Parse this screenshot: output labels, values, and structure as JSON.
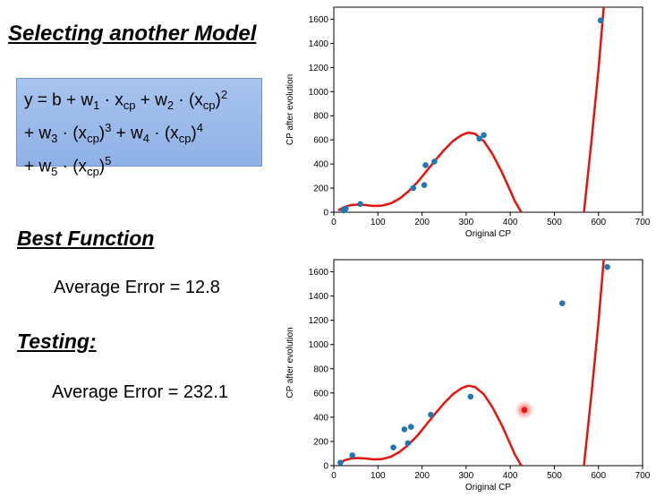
{
  "slide": {
    "title": "Selecting another Model",
    "formula": {
      "line1": [
        "y = b + w",
        "1",
        " · x",
        "cp",
        " + w",
        "2",
        " · (x",
        "cp",
        ")",
        "2"
      ],
      "line2": [
        "+ w",
        "3",
        " · (x",
        "cp",
        ")",
        "3",
        " + w",
        "4",
        " · (x",
        "cp",
        ")",
        "4"
      ],
      "line3": [
        "+ w",
        "5",
        " · (x",
        "cp",
        ")",
        "5"
      ]
    },
    "best_function_label": "Best Function",
    "train_error": "Average Error = 12.8",
    "testing_label": "Testing:",
    "test_error": "Average Error = 232.1"
  },
  "chart_data": [
    {
      "type": "scatter",
      "title": "",
      "xlabel": "Original CP",
      "ylabel": "CP after evolution",
      "xlim": [
        0,
        700
      ],
      "ylim": [
        0,
        1700
      ],
      "xticks": [
        0,
        100,
        200,
        300,
        400,
        500,
        600,
        700
      ],
      "yticks": [
        0,
        200,
        400,
        600,
        800,
        1000,
        1200,
        1400,
        1600
      ],
      "points": [
        [
          22,
          15
        ],
        [
          27,
          30
        ],
        [
          60,
          68
        ],
        [
          180,
          200
        ],
        [
          205,
          225
        ],
        [
          208,
          390
        ],
        [
          228,
          420
        ],
        [
          330,
          610
        ],
        [
          340,
          640
        ],
        [
          605,
          1590
        ]
      ],
      "highlight": [],
      "point_color": "#1f77b4",
      "curve_color": "#e8120c",
      "curve": [
        [
          10,
          15
        ],
        [
          25,
          45
        ],
        [
          40,
          60
        ],
        [
          55,
          63
        ],
        [
          70,
          60
        ],
        [
          90,
          52
        ],
        [
          110,
          55
        ],
        [
          130,
          75
        ],
        [
          150,
          115
        ],
        [
          170,
          175
        ],
        [
          190,
          250
        ],
        [
          210,
          340
        ],
        [
          230,
          430
        ],
        [
          250,
          515
        ],
        [
          270,
          590
        ],
        [
          290,
          640
        ],
        [
          305,
          660
        ],
        [
          320,
          650
        ],
        [
          340,
          590
        ],
        [
          360,
          480
        ],
        [
          380,
          340
        ],
        [
          400,
          180
        ],
        [
          410,
          95
        ],
        [
          425,
          0
        ]
      ],
      "curve2": [
        [
          567,
          0
        ],
        [
          585,
          620
        ],
        [
          600,
          1180
        ],
        [
          612,
          1700
        ]
      ]
    },
    {
      "type": "scatter",
      "title": "",
      "xlabel": "Original CP",
      "ylabel": "CP after evolution",
      "xlim": [
        0,
        700
      ],
      "ylim": [
        0,
        1700
      ],
      "xticks": [
        0,
        100,
        200,
        300,
        400,
        500,
        600,
        700
      ],
      "yticks": [
        0,
        200,
        400,
        600,
        800,
        1000,
        1200,
        1400,
        1600
      ],
      "points": [
        [
          15,
          25
        ],
        [
          42,
          85
        ],
        [
          135,
          150
        ],
        [
          160,
          300
        ],
        [
          168,
          185
        ],
        [
          175,
          320
        ],
        [
          220,
          420
        ],
        [
          310,
          570
        ],
        [
          518,
          1340
        ],
        [
          620,
          1640
        ]
      ],
      "highlight": [
        [
          432,
          460
        ]
      ],
      "point_color": "#1f77b4",
      "curve_color": "#e8120c",
      "curve": [
        [
          10,
          15
        ],
        [
          25,
          45
        ],
        [
          40,
          60
        ],
        [
          55,
          63
        ],
        [
          70,
          60
        ],
        [
          90,
          52
        ],
        [
          110,
          55
        ],
        [
          130,
          75
        ],
        [
          150,
          115
        ],
        [
          170,
          175
        ],
        [
          190,
          250
        ],
        [
          210,
          340
        ],
        [
          230,
          430
        ],
        [
          250,
          515
        ],
        [
          270,
          590
        ],
        [
          290,
          640
        ],
        [
          305,
          660
        ],
        [
          320,
          650
        ],
        [
          340,
          590
        ],
        [
          360,
          480
        ],
        [
          380,
          340
        ],
        [
          400,
          180
        ],
        [
          410,
          95
        ],
        [
          425,
          0
        ]
      ],
      "curve2": [
        [
          567,
          0
        ],
        [
          585,
          620
        ],
        [
          600,
          1180
        ],
        [
          612,
          1700
        ]
      ]
    }
  ]
}
